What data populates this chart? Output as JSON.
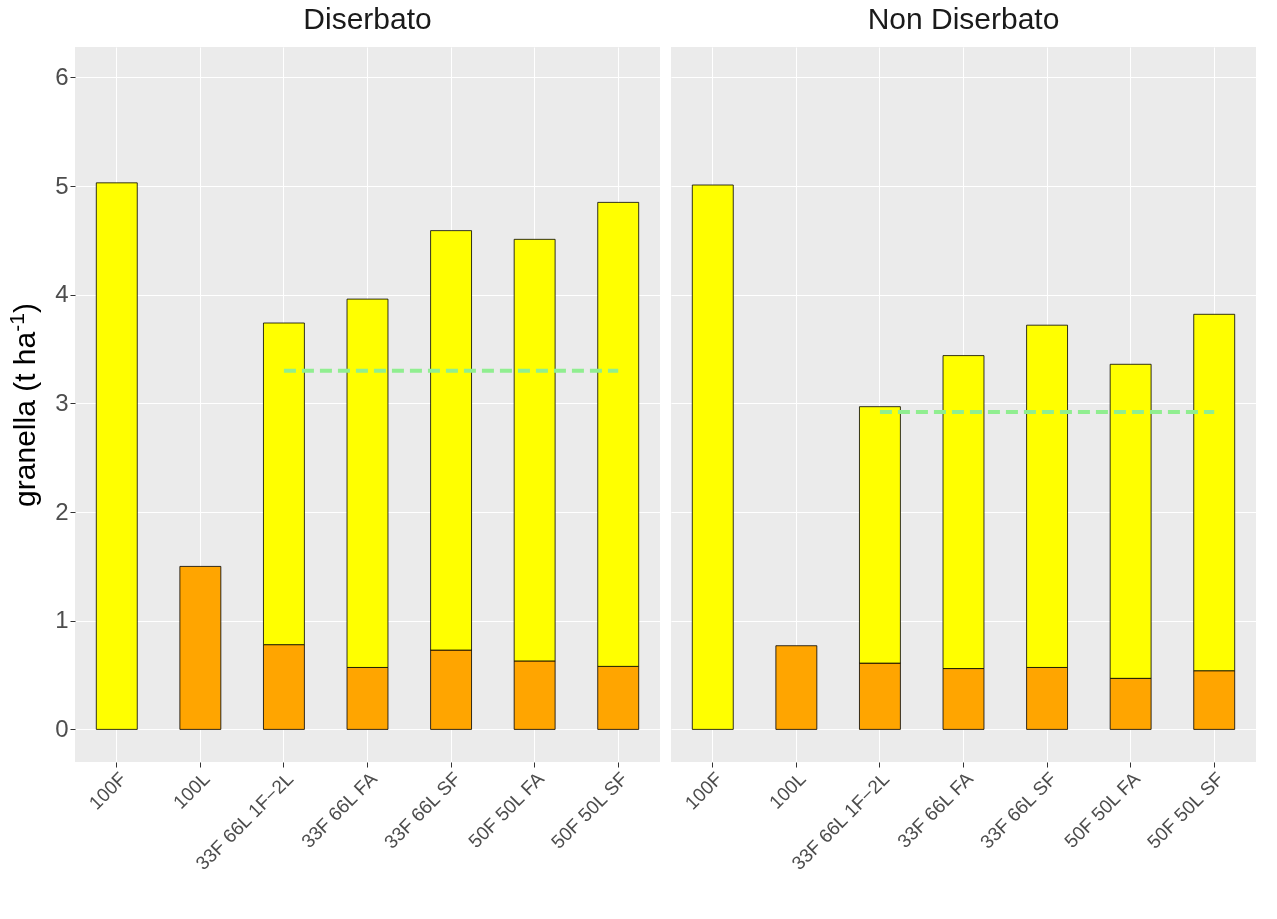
{
  "chart_data": [
    {
      "type": "bar",
      "title": "Diserbato",
      "ylabel": "granella (t ha$^{-1}$)",
      "categories": [
        "100F",
        "100L",
        "33F 66L 1F−2L",
        "33F 66L FA",
        "33F 66L SF",
        "50F 50L FA",
        "50F 50L SF"
      ],
      "stacked": true,
      "ylim": [
        -0.3,
        6.28
      ],
      "yticks": [
        0,
        1,
        2,
        3,
        4,
        5,
        6
      ],
      "grid": true,
      "series": [
        {
          "color": "#ffa500",
          "values": [
            null,
            1.5,
            0.78,
            0.57,
            0.73,
            0.63,
            0.58
          ]
        },
        {
          "color": "#ffff00",
          "values": [
            5.03,
            null,
            2.96,
            3.39,
            3.86,
            3.88,
            4.27
          ]
        },
        {
          "type": "line",
          "color": "#90ee90",
          "line_style": "dashed",
          "values": [
            null,
            null,
            3.3,
            3.3,
            3.3,
            3.3,
            3.3
          ]
        }
      ]
    },
    {
      "type": "bar",
      "title": "Non Diserbato",
      "categories": [
        "100F",
        "100L",
        "33F 66L 1F−2L",
        "33F 66L FA",
        "33F 66L SF",
        "50F 50L FA",
        "50F 50L SF"
      ],
      "stacked": true,
      "ylim": [
        -0.3,
        6.28
      ],
      "yticks": [
        0,
        1,
        2,
        3,
        4,
        5,
        6
      ],
      "grid": true,
      "tick_labels": "x",
      "series": [
        {
          "color": "#ffa500",
          "values": [
            null,
            0.77,
            0.61,
            0.56,
            0.57,
            0.47,
            0.54
          ]
        },
        {
          "color": "#ffff00",
          "values": [
            5.01,
            null,
            2.36,
            2.88,
            3.15,
            2.89,
            3.28
          ]
        },
        {
          "type": "line",
          "color": "#90ee90",
          "line_style": "dashed",
          "values": [
            null,
            null,
            2.92,
            2.92,
            2.92,
            2.92,
            2.92
          ]
        }
      ]
    }
  ]
}
